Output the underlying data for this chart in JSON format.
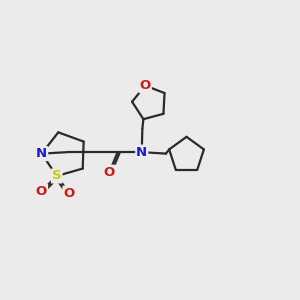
{
  "bg_color": "#ebebeb",
  "bond_color": "#2a2a2a",
  "N_color": "#1a1acc",
  "O_color": "#cc1a1a",
  "S_color": "#cccc00",
  "line_width": 1.6,
  "figsize": [
    3.0,
    3.0
  ],
  "dpi": 100,
  "xlim": [
    0,
    10
  ],
  "ylim": [
    0,
    10
  ]
}
